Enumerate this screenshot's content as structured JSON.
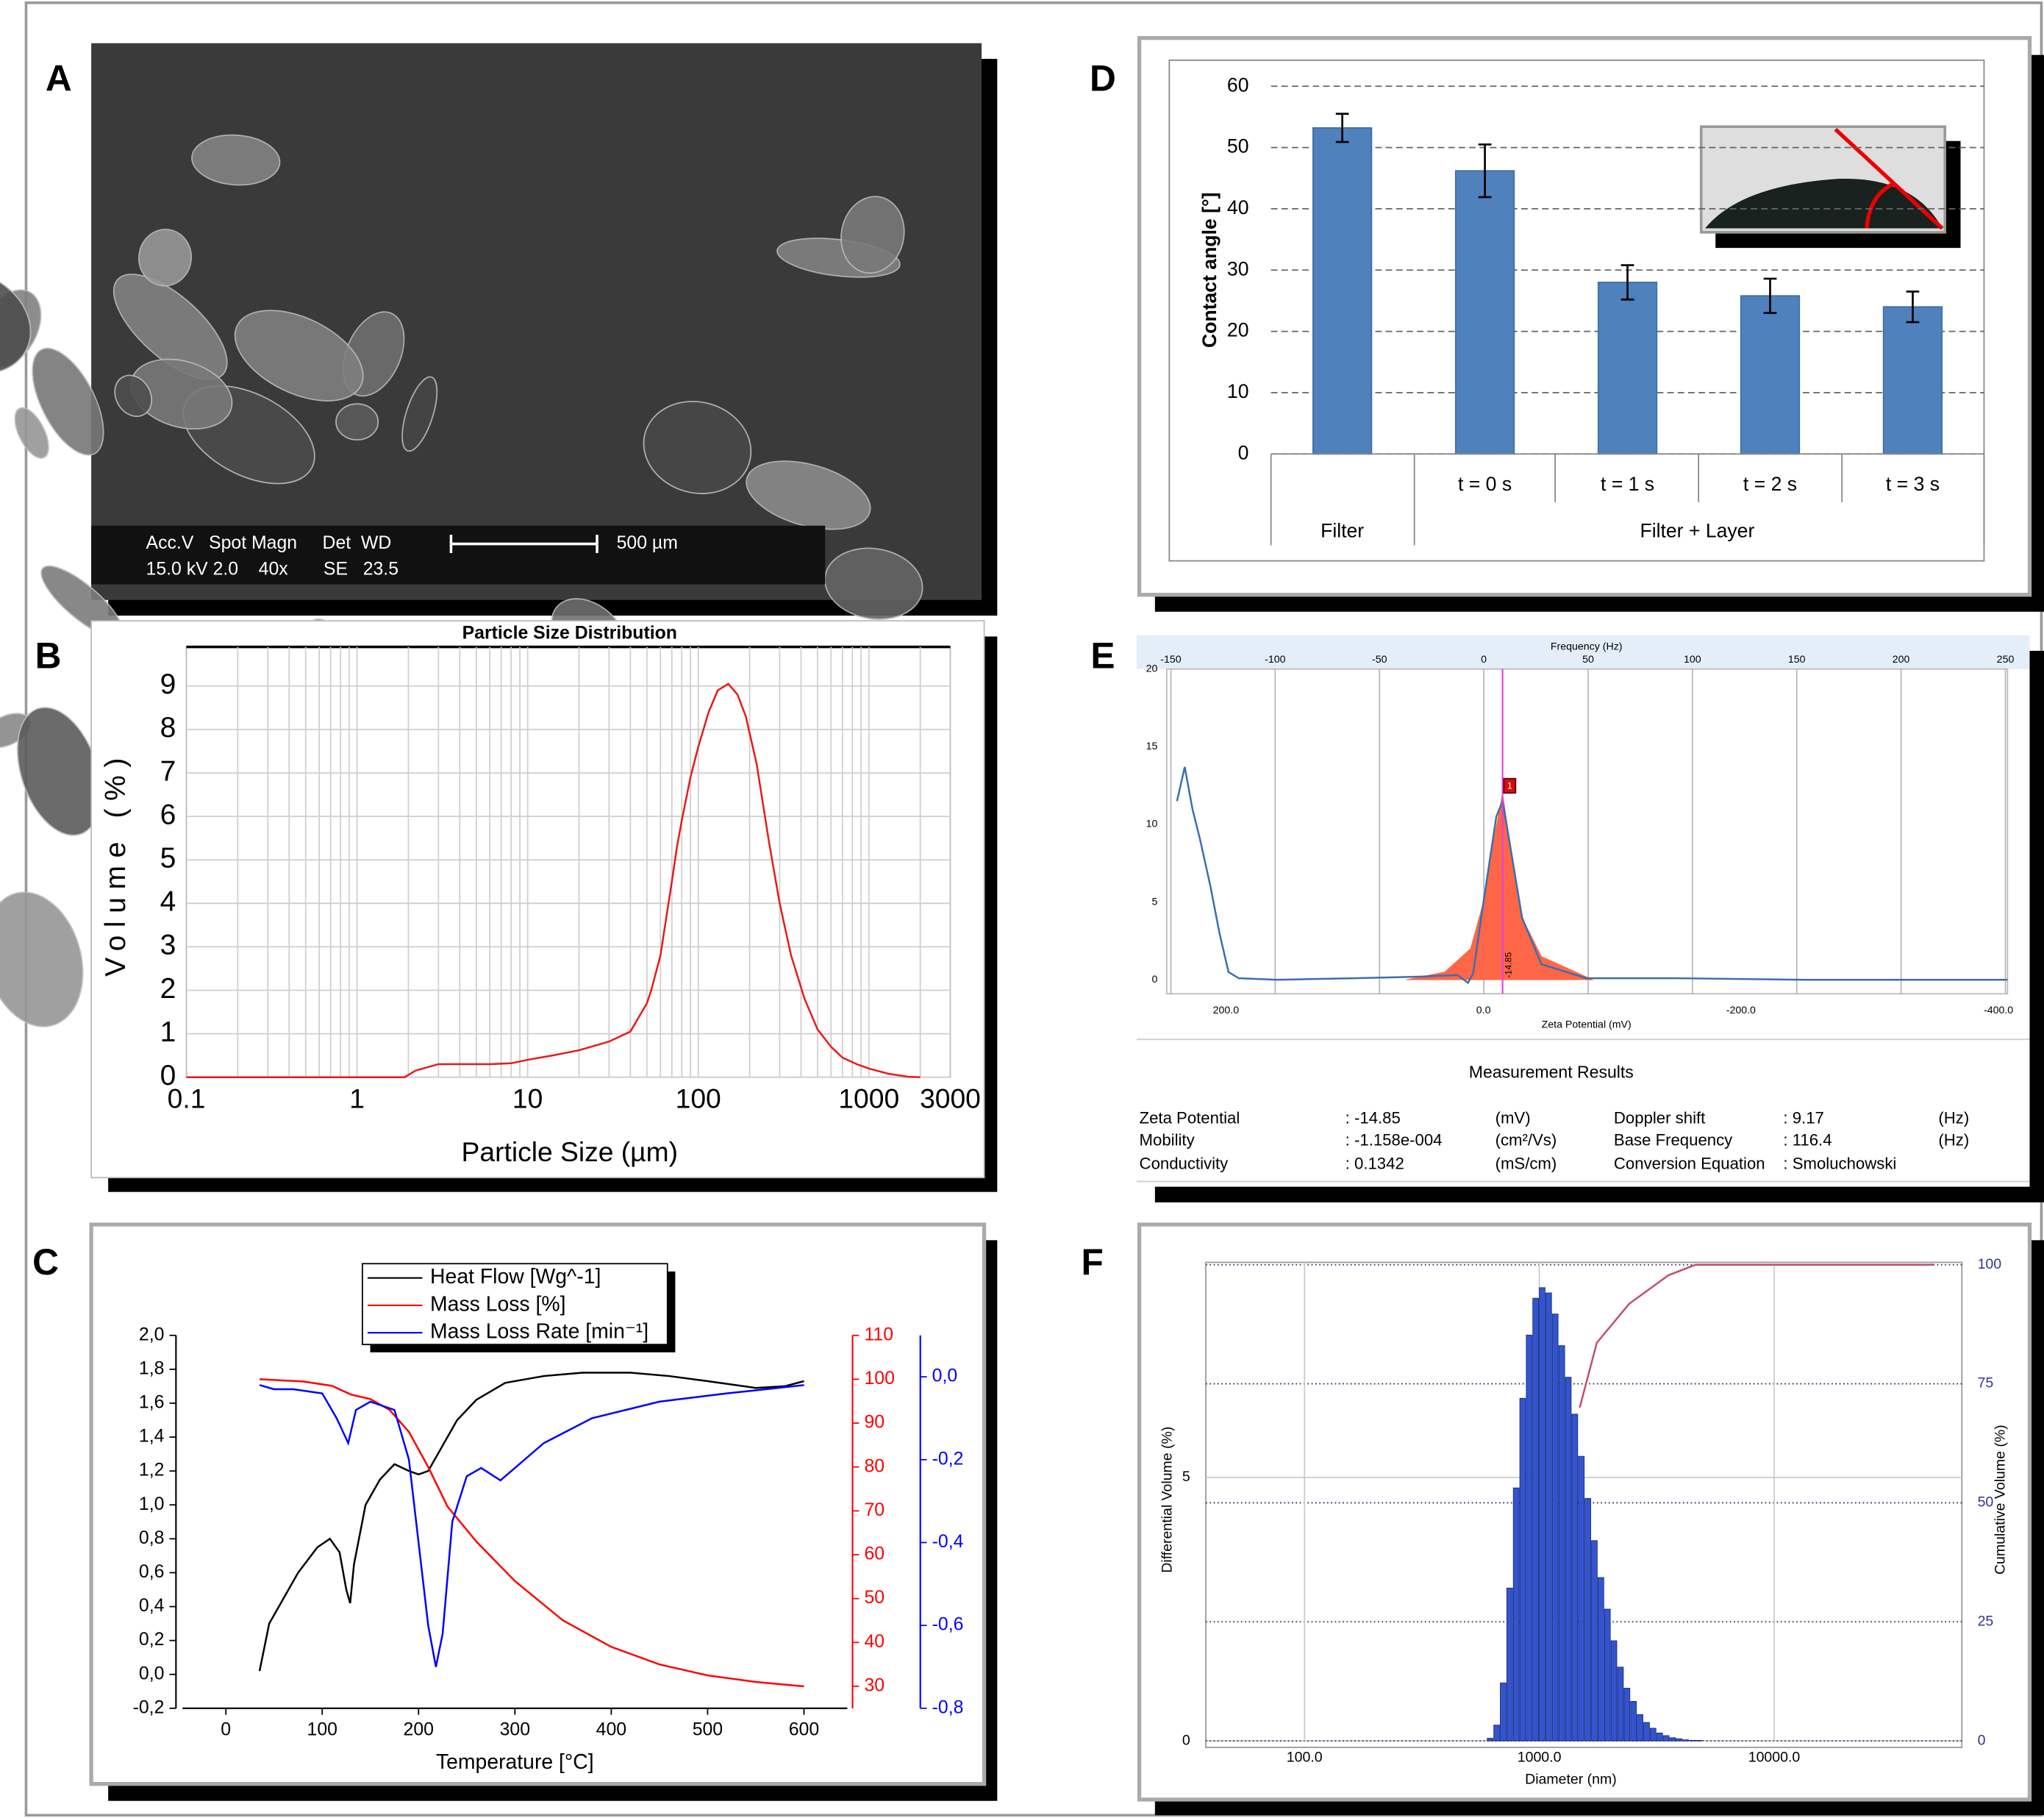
{
  "panels": [
    "A",
    "B",
    "C",
    "D",
    "E",
    "F"
  ],
  "sem": {
    "line1": "Acc.V   Spot Magn     Det  WD",
    "line2": "15.0 kV 2.0    40x       SE   23.5",
    "scale": "500 µm"
  },
  "measurement": {
    "title": "Measurement Results",
    "rows": [
      [
        "Zeta Potential",
        ": -14.85",
        "(mV)",
        "Doppler shift",
        ": 9.17",
        "(Hz)"
      ],
      [
        "Mobility",
        ": -1.158e-004",
        "(cm²/Vs)",
        "Base Frequency",
        ": 116.4",
        "(Hz)"
      ],
      [
        "Conductivity",
        ": 0.1342",
        "(mS/cm)",
        "Conversion Equation",
        ": Smoluchowski"
      ]
    ]
  },
  "chart_data": [
    {
      "type": "line",
      "title": "Particle Size Distribution",
      "xlabel": "Particle Size (µm)",
      "ylabel": "Volume (%)",
      "xlog": true,
      "xlim": [
        0.1,
        3000
      ],
      "xticks": [
        0.1,
        1,
        10,
        100,
        1000,
        3000
      ],
      "ylim": [
        0,
        9.9
      ],
      "yticks": [
        0,
        1,
        2,
        3,
        4,
        5,
        6,
        7,
        8,
        9
      ],
      "grid": true,
      "series": [
        {
          "color": "#e8191a",
          "x": [
            0.1,
            1,
            1.9,
            2.2,
            3,
            4,
            6,
            8,
            10,
            14,
            20,
            30,
            40,
            50,
            53,
            60,
            70,
            75,
            80,
            90,
            100,
            115,
            130,
            150,
            170,
            190,
            220,
            260,
            300,
            350,
            420,
            500,
            600,
            700,
            850,
            1000,
            1300,
            1700,
            2000
          ],
          "values": [
            0,
            0,
            0,
            0.15,
            0.3,
            0.3,
            0.3,
            0.32,
            0.4,
            0.5,
            0.62,
            0.82,
            1.05,
            1.7,
            2.0,
            2.8,
            4.5,
            5.3,
            5.9,
            6.9,
            7.6,
            8.4,
            8.9,
            9.05,
            8.8,
            8.3,
            7.2,
            5.4,
            4.0,
            2.8,
            1.8,
            1.1,
            0.7,
            0.45,
            0.3,
            0.2,
            0.08,
            0.01,
            0
          ]
        }
      ]
    },
    {
      "type": "line",
      "xlabel": "Temperature [°C]",
      "legend": "top",
      "xlim": [
        -45,
        645
      ],
      "xticks": [
        0,
        100,
        200,
        300,
        400,
        500,
        600
      ],
      "ylim": [
        -0.2,
        2.0
      ],
      "yticks": [
        {
          "value": -0.2,
          "label": "-0,2"
        },
        {
          "value": 0,
          "label": "0,0"
        },
        {
          "value": 0.2,
          "label": "0,2"
        },
        {
          "value": 0.4,
          "label": "0,4"
        },
        {
          "value": 0.6,
          "label": "0,6"
        },
        {
          "value": 0.8,
          "label": "0,8"
        },
        {
          "value": 1.0,
          "label": "1,0"
        },
        {
          "value": 1.2,
          "label": "1,2"
        },
        {
          "value": 1.4,
          "label": "1,4"
        },
        {
          "value": 1.6,
          "label": "1,6"
        },
        {
          "value": 1.8,
          "label": "1,8"
        },
        {
          "value": 2.0,
          "label": "2,0"
        }
      ],
      "y2lim": [
        25,
        110
      ],
      "y2ticks": [
        30,
        40,
        50,
        60,
        70,
        80,
        90,
        100,
        110
      ],
      "y2color": "#ff0000",
      "y3lim": [
        -0.8,
        0.1
      ],
      "y3ticks": [
        {
          "value": 0,
          "label": "0,0"
        },
        {
          "value": -0.2,
          "label": "-0,2"
        },
        {
          "value": -0.4,
          "label": "-0,4"
        },
        {
          "value": -0.6,
          "label": "-0,6"
        },
        {
          "value": -0.8,
          "label": "-0,8"
        }
      ],
      "y3color": "#0000ff",
      "series": [
        {
          "name": "Heat Flow [Wg^-1]",
          "color": "#000000",
          "axis": "y",
          "x": [
            35,
            45,
            60,
            75,
            95,
            108,
            118,
            125,
            129,
            133,
            145,
            160,
            175,
            190,
            200,
            210,
            225,
            240,
            260,
            290,
            330,
            370,
            420,
            460,
            500,
            550,
            580,
            600
          ],
          "values": [
            0.02,
            0.3,
            0.45,
            0.6,
            0.75,
            0.8,
            0.72,
            0.5,
            0.42,
            0.65,
            1.0,
            1.15,
            1.24,
            1.2,
            1.18,
            1.2,
            1.35,
            1.5,
            1.62,
            1.72,
            1.76,
            1.78,
            1.78,
            1.76,
            1.73,
            1.69,
            1.7,
            1.73
          ]
        },
        {
          "name": "Mass Loss [%]",
          "color": "#ff0000",
          "axis": "y2",
          "x": [
            35,
            80,
            110,
            130,
            150,
            170,
            190,
            210,
            230,
            260,
            300,
            350,
            400,
            450,
            500,
            550,
            600
          ],
          "values": [
            100,
            99.5,
            98.5,
            96.5,
            95.5,
            93,
            88,
            80,
            71,
            63,
            54,
            45,
            39,
            35,
            32.5,
            31,
            30
          ]
        },
        {
          "name": "Mass Loss Rate [min⁻¹]",
          "color": "#0000ff",
          "axis": "y3",
          "x": [
            35,
            50,
            70,
            100,
            115,
            127,
            135,
            150,
            175,
            190,
            200,
            210,
            218,
            225,
            235,
            250,
            265,
            285,
            300,
            330,
            380,
            450,
            520,
            600
          ],
          "values": [
            -0.02,
            -0.03,
            -0.03,
            -0.04,
            -0.1,
            -0.16,
            -0.08,
            -0.06,
            -0.08,
            -0.2,
            -0.4,
            -0.6,
            -0.7,
            -0.62,
            -0.35,
            -0.24,
            -0.22,
            -0.25,
            -0.22,
            -0.16,
            -0.1,
            -0.06,
            -0.04,
            -0.02
          ]
        }
      ]
    },
    {
      "type": "bar",
      "ylabel": "Contact angle [°]",
      "color": "#4f81bd",
      "categories": [
        "Filter",
        "t = 0 s",
        "t = 1 s",
        "t = 2 s",
        "t = 3 s"
      ],
      "group_label": "Filter + Layer",
      "values": [
        53.2,
        46.2,
        28,
        25.8,
        24
      ],
      "errors": [
        2.3,
        4.3,
        2.8,
        2.8,
        2.5
      ],
      "ylim": [
        0,
        60
      ],
      "yticks": [
        0,
        10,
        20,
        30,
        40,
        50,
        60
      ],
      "grid": true
    },
    {
      "type": "line",
      "xlabel": "Zeta Potential (mV)",
      "x2label": "Frequency (Hz)",
      "xlim": [
        246,
        -407
      ],
      "xticks": [
        {
          "value": 200,
          "label": "200.0"
        },
        {
          "value": 0,
          "label": "0.0"
        },
        {
          "value": -200,
          "label": "-200.0"
        },
        {
          "value": -400,
          "label": "-400.0"
        }
      ],
      "x2lim": [
        -152,
        251
      ],
      "x2ticks": [
        -150,
        -100,
        -50,
        0,
        50,
        100,
        150,
        200,
        250
      ],
      "ylim": [
        -0.9,
        20
      ],
      "yticks": [
        0,
        5,
        10,
        15,
        20
      ],
      "marker": {
        "value": -14.85,
        "tag": "1",
        "color": "#e040e0"
      },
      "series": [
        {
          "color": "#ff6647",
          "fill": true,
          "x": [
            60,
            30,
            10,
            0,
            -8,
            -14.85,
            -22,
            -30,
            -45,
            -85
          ],
          "values": [
            0,
            0.5,
            2,
            5,
            9,
            12,
            8,
            4,
            1.5,
            0
          ]
        },
        {
          "color": "#3a6fb0",
          "x": [
            238,
            232,
            226,
            220,
            212,
            205,
            198,
            190,
            160,
            100,
            50,
            20,
            12,
            8,
            0,
            -10,
            -14.85,
            -20,
            -30,
            -45,
            -80,
            -150,
            -250,
            -407
          ],
          "values": [
            11.5,
            13.7,
            11,
            9,
            6,
            3,
            0.5,
            0.1,
            0,
            0.1,
            0.2,
            0.3,
            -0.2,
            0.4,
            5,
            10.5,
            11.5,
            9,
            4,
            1,
            0.1,
            0.1,
            0,
            0
          ]
        }
      ]
    },
    {
      "type": "histogram",
      "xlabel": "Diameter (nm)",
      "ylabel": "Differential Volume (%)",
      "y2label": "Cumulative Volume (%)",
      "color": "#3355cc",
      "xlog": true,
      "xlim": [
        38,
        63000
      ],
      "xticks": [
        {
          "value": 100,
          "label": "100.0"
        },
        {
          "value": 1000,
          "label": "1000.0"
        },
        {
          "value": 10000,
          "label": "10000.0"
        }
      ],
      "ylim": [
        0,
        9.08
      ],
      "yticks": [
        0,
        5
      ],
      "y2lim": [
        0,
        100.5
      ],
      "y2ticks": [
        0,
        25,
        50,
        75,
        100
      ],
      "y2color": "#333399",
      "bins": [
        600,
        640,
        682,
        727,
        775,
        826,
        880,
        938,
        1000,
        1066,
        1136,
        1211,
        1292,
        1377,
        1468,
        1565,
        1668,
        1778,
        1896,
        2021,
        2154,
        2297,
        2448,
        2610,
        2783,
        2967,
        3162,
        3371,
        3594,
        3831,
        4084,
        4354,
        4642,
        4949,
        5275,
        5623
      ],
      "values": [
        0.05,
        0.3,
        1.1,
        2.9,
        4.8,
        6.5,
        7.7,
        8.4,
        8.6,
        8.5,
        8.1,
        7.5,
        6.9,
        6.2,
        5.4,
        4.6,
        3.8,
        3.1,
        2.5,
        1.9,
        1.4,
        1.0,
        0.75,
        0.5,
        0.35,
        0.24,
        0.15,
        0.1,
        0.06,
        0.04,
        0.02,
        0.01,
        0.01,
        0.0,
        0.0
      ],
      "series": [
        {
          "color": "#c0506a",
          "axis": "y2",
          "x": [
            1486,
            1757,
            2414,
            3548,
            4629,
            10000,
            48000
          ],
          "values": [
            70,
            83.6,
            91.8,
            97.8,
            100,
            100,
            100
          ]
        }
      ]
    }
  ]
}
